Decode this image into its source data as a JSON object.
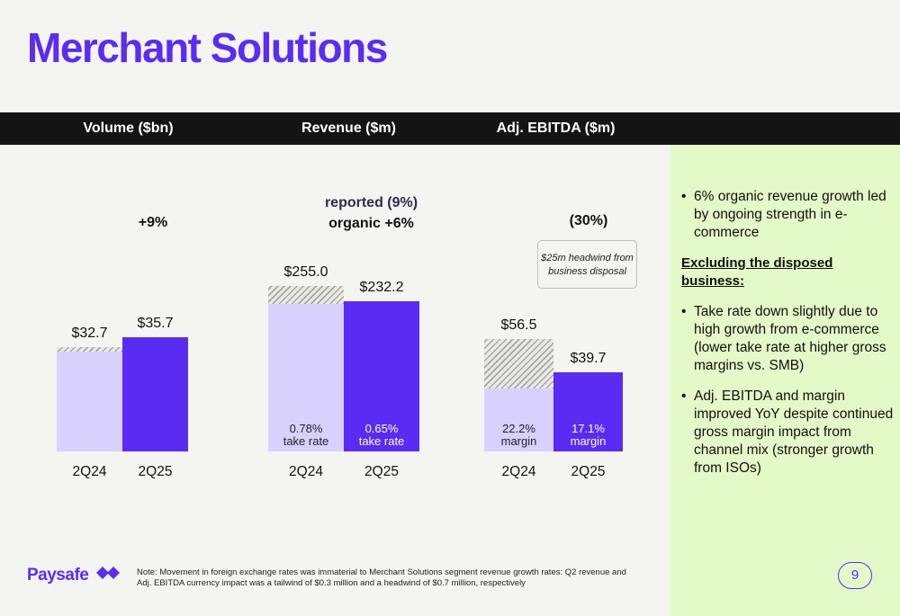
{
  "page": {
    "title": "Merchant Solutions",
    "page_number": "9"
  },
  "header": {
    "col1": "Volume ($bn)",
    "col2": "Revenue ($m)",
    "col3": "Adj. EBITDA ($m)"
  },
  "charts": {
    "volume": {
      "growth": "+9%"
    },
    "revenue": {
      "growth_reported": "reported (9%)",
      "growth_organic": "organic +6%"
    },
    "ebitda": {
      "growth": "(30%)",
      "callout": {
        "line1": "$25m headwind from",
        "line2": "business disposal"
      }
    }
  },
  "chart_data": [
    {
      "type": "bar",
      "title": "Volume ($bn)",
      "categories": [
        "2Q24",
        "2Q25"
      ],
      "values": [
        32.7,
        35.7
      ],
      "value_labels": [
        "$32.7",
        "$35.7"
      ],
      "disposed_business_portion": [
        1.3,
        0
      ],
      "growth_label": "+9%"
    },
    {
      "type": "bar",
      "title": "Revenue ($m)",
      "categories": [
        "2Q24",
        "2Q25"
      ],
      "values": [
        255.0,
        232.2
      ],
      "value_labels": [
        "$255.0",
        "$232.2"
      ],
      "disposed_business_portion": [
        27,
        0
      ],
      "inner_labels": [
        {
          "value": "0.78%",
          "label": "take rate"
        },
        {
          "value": "0.65%",
          "label": "take rate"
        }
      ]
    },
    {
      "type": "bar",
      "title": "Adj. EBITDA ($m)",
      "categories": [
        "2Q24",
        "2Q25"
      ],
      "values": [
        56.5,
        39.7
      ],
      "value_labels": [
        "$56.5",
        "$39.7"
      ],
      "disposed_business_portion": [
        25,
        0
      ],
      "inner_labels": [
        {
          "value": "22.2%",
          "label": "margin"
        },
        {
          "value": "17.1%",
          "label": "margin"
        }
      ]
    }
  ],
  "right_panel": {
    "bullet1": "6% organic revenue growth led by ongoing strength in e-commerce",
    "subheading": "Excluding the disposed business:",
    "bullet2": "Take rate down slightly due to high growth from e-commerce (lower take rate at higher gross margins vs. SMB)",
    "bullet3": "Adj. EBITDA and margin improved YoY despite continued gross margin impact from channel mix (stronger growth from ISOs)"
  },
  "footer": {
    "logo": "Paysafe",
    "note": "Note: Movement in foreign exchange rates was immaterial to Merchant Solutions segment revenue growth rates: Q2 revenue and Adj. EBITDA currency impact was a tailwind of $0.3 million and a headwind of $0.7 million, respectively"
  },
  "colors": {
    "accent": "#5b2cf5",
    "bar_light": "#d9d1fd",
    "bar_dark": "#5a2bf3",
    "panel": "#e3f9c8",
    "header_bg": "#141414"
  }
}
